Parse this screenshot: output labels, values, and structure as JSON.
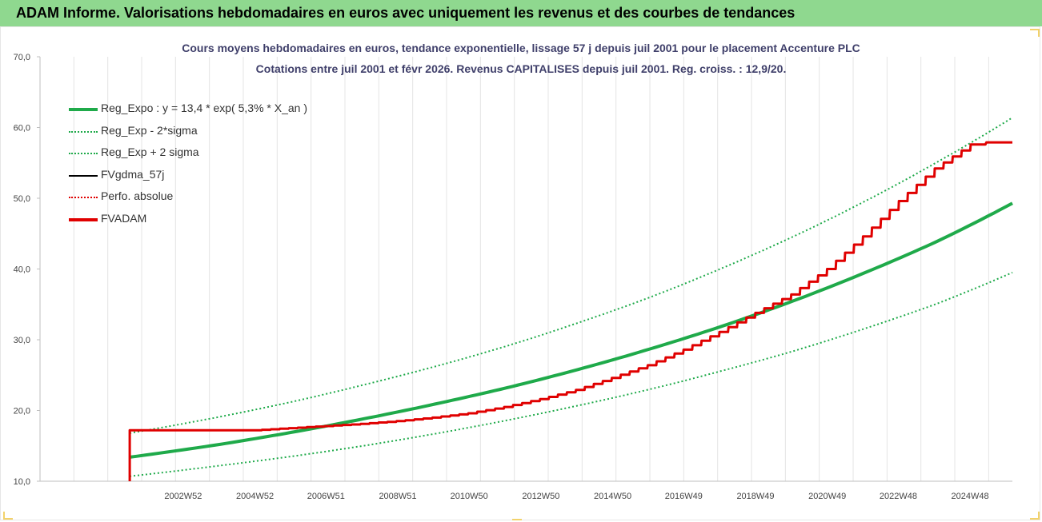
{
  "banner": {
    "title": "ADAM Informe. Valorisations hebdomadaires en euros avec uniquement les revenus et des courbes de tendances"
  },
  "colors": {
    "banner_bg": "#8fd88f",
    "reg_green": "#1faa4a",
    "adam_red": "#e00000",
    "black": "#000000",
    "grid": "#d9d9d9"
  },
  "chart_data": {
    "type": "line",
    "title_line1": "Cours moyens hebdomadaires en euros, tendance exponentielle, lissage 57 j depuis juil 2001 pour le placement Accenture PLC",
    "title_line2": "Cotations entre juil 2001 et févr 2026. Revenus CAPITALISES depuis juil 2001. Reg. croiss. : 12,9/20.",
    "ylim": [
      10,
      70
    ],
    "yticks": [
      "10,0",
      "20,0",
      "30,0",
      "40,0",
      "50,0",
      "60,0",
      "70,0"
    ],
    "xlim": [
      1999.0,
      2026.1
    ],
    "xtick_labels": [
      "2002W52",
      "2004W52",
      "2006W51",
      "2008W51",
      "2010W50",
      "2012W50",
      "2014W50",
      "2016W49",
      "2018W49",
      "2020W49",
      "2022W48",
      "2024W48"
    ],
    "xtick_years": [
      2002.99,
      2004.99,
      2006.97,
      2008.97,
      2010.96,
      2012.96,
      2014.96,
      2016.94,
      2018.94,
      2020.94,
      2022.92,
      2024.92
    ],
    "grid": "vertical",
    "legend_position": "top-left",
    "legend": [
      {
        "label": "Reg_Expo : y = 13,4 * exp( 5,3% *  X_an )",
        "style": "solid-thick",
        "color": "#1faa4a"
      },
      {
        "label": "Reg_Exp - 2*sigma",
        "style": "dotted",
        "color": "#1faa4a"
      },
      {
        "label": "Reg_Exp + 2 sigma",
        "style": "dotted",
        "color": "#1faa4a"
      },
      {
        "label": "FVgdma_57j",
        "style": "solid",
        "color": "#000000"
      },
      {
        "label": "Perfo. absolue",
        "style": "dotted",
        "color": "#e00000"
      },
      {
        "label": "FVADAM",
        "style": "solid-thick",
        "color": "#e00000"
      }
    ],
    "series": [
      {
        "name": "Reg_Expo : y = 13,4 * exp( 5,3% *  X_an )",
        "x": [
          2001.5,
          2004,
          2006,
          2008,
          2010,
          2012,
          2014,
          2016,
          2018,
          2020,
          2022,
          2024,
          2026.1
        ],
        "values": [
          13.4,
          15.2,
          16.9,
          18.8,
          20.9,
          23.2,
          25.8,
          28.7,
          31.9,
          35.5,
          39.5,
          43.9,
          49.3
        ]
      },
      {
        "name": "Reg_Exp - 2*sigma",
        "x": [
          2001.5,
          2004,
          2006,
          2008,
          2010,
          2012,
          2014,
          2016,
          2018,
          2020,
          2022,
          2024,
          2026.1
        ],
        "values": [
          10.7,
          12.2,
          13.5,
          15.0,
          16.7,
          18.6,
          20.7,
          23.0,
          25.6,
          28.4,
          31.6,
          35.1,
          39.5
        ]
      },
      {
        "name": "Reg_Exp + 2 sigma",
        "x": [
          2001.5,
          2004,
          2006,
          2008,
          2010,
          2012,
          2014,
          2016,
          2018,
          2020,
          2022,
          2024,
          2026.1
        ],
        "values": [
          16.8,
          19.1,
          21.2,
          23.6,
          26.2,
          29.1,
          32.4,
          36.0,
          40.1,
          44.6,
          49.6,
          55.1,
          61.4
        ]
      },
      {
        "name": "FVADAM",
        "x": [
          2001.5,
          2001.5,
          2005.0,
          2006.0,
          2007.0,
          2008.0,
          2009.0,
          2010.0,
          2011.0,
          2012.0,
          2013.0,
          2014.0,
          2015.0,
          2016.0,
          2017.0,
          2018.0,
          2019.0,
          2020.0,
          2021.0,
          2022.0,
          2023.0,
          2024.0,
          2025.0,
          2025.5,
          2026.1
        ],
        "values": [
          10.0,
          17.2,
          17.2,
          17.5,
          17.8,
          18.1,
          18.5,
          19.0,
          19.6,
          20.5,
          21.6,
          22.9,
          24.6,
          26.4,
          28.6,
          31.1,
          33.8,
          36.4,
          40.0,
          44.6,
          49.6,
          54.2,
          57.6,
          57.9,
          57.9
        ]
      },
      {
        "name": "FVgdma_57j",
        "x": [],
        "values": []
      },
      {
        "name": "Perfo. absolue",
        "x": [],
        "values": []
      }
    ]
  }
}
